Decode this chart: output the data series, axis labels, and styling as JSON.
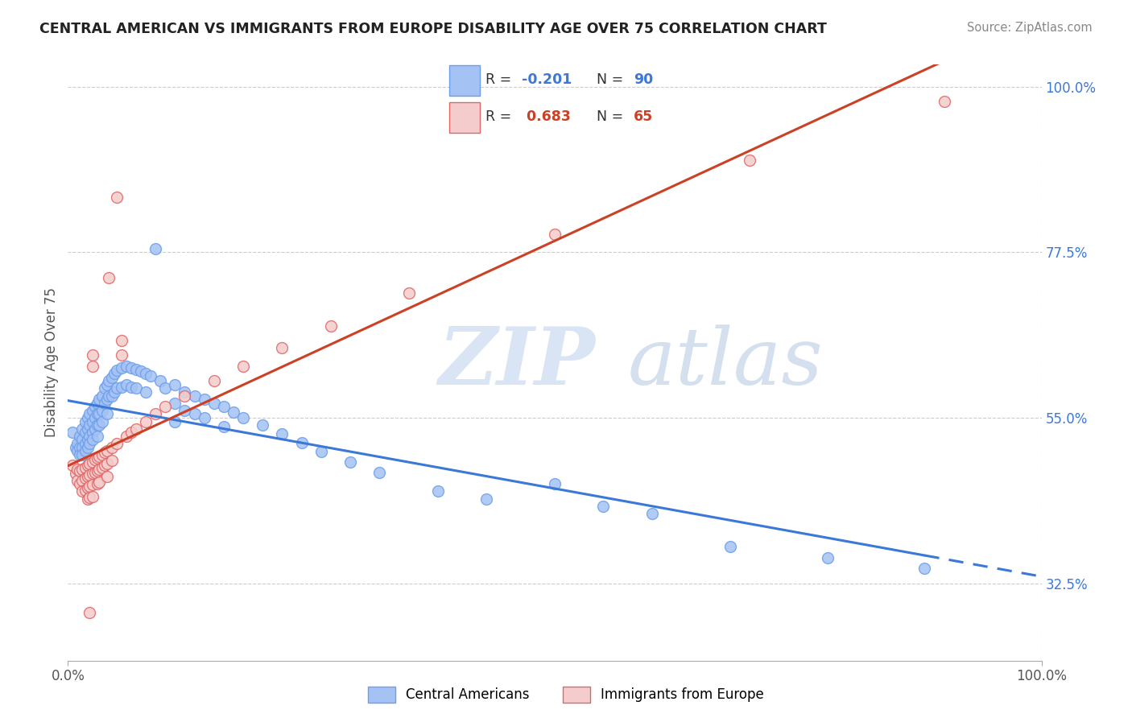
{
  "title": "CENTRAL AMERICAN VS IMMIGRANTS FROM EUROPE DISABILITY AGE OVER 75 CORRELATION CHART",
  "source": "Source: ZipAtlas.com",
  "ylabel": "Disability Age Over 75",
  "legend_labels": [
    "Central Americans",
    "Immigrants from Europe"
  ],
  "blue_color": "#a4c2f4",
  "pink_color": "#f4cccc",
  "blue_edge_color": "#6d9eeb",
  "pink_edge_color": "#e06666",
  "blue_line_color": "#3c78d8",
  "pink_line_color": "#cc4125",
  "watermark_zip": "ZIP",
  "watermark_atlas": "atlas",
  "xlim": [
    0.0,
    1.0
  ],
  "ylim": [
    0.22,
    1.03
  ],
  "ytick_vals": [
    0.325,
    0.55,
    0.775,
    1.0
  ],
  "ytick_labels": [
    "32.5%",
    "55.0%",
    "77.5%",
    "100.0%"
  ],
  "xtick_vals": [
    0.0,
    1.0
  ],
  "xtick_labels": [
    "0.0%",
    "100.0%"
  ],
  "blue_scatter": [
    [
      0.005,
      0.53
    ],
    [
      0.008,
      0.51
    ],
    [
      0.01,
      0.515
    ],
    [
      0.01,
      0.505
    ],
    [
      0.012,
      0.525
    ],
    [
      0.012,
      0.51
    ],
    [
      0.012,
      0.5
    ],
    [
      0.015,
      0.535
    ],
    [
      0.015,
      0.52
    ],
    [
      0.015,
      0.51
    ],
    [
      0.015,
      0.5
    ],
    [
      0.018,
      0.545
    ],
    [
      0.018,
      0.53
    ],
    [
      0.018,
      0.515
    ],
    [
      0.018,
      0.505
    ],
    [
      0.02,
      0.55
    ],
    [
      0.02,
      0.535
    ],
    [
      0.02,
      0.52
    ],
    [
      0.02,
      0.51
    ],
    [
      0.022,
      0.555
    ],
    [
      0.022,
      0.54
    ],
    [
      0.022,
      0.525
    ],
    [
      0.022,
      0.515
    ],
    [
      0.025,
      0.56
    ],
    [
      0.025,
      0.545
    ],
    [
      0.025,
      0.53
    ],
    [
      0.025,
      0.52
    ],
    [
      0.028,
      0.565
    ],
    [
      0.028,
      0.55
    ],
    [
      0.028,
      0.535
    ],
    [
      0.03,
      0.57
    ],
    [
      0.03,
      0.555
    ],
    [
      0.03,
      0.54
    ],
    [
      0.03,
      0.525
    ],
    [
      0.032,
      0.575
    ],
    [
      0.032,
      0.555
    ],
    [
      0.032,
      0.54
    ],
    [
      0.035,
      0.58
    ],
    [
      0.035,
      0.56
    ],
    [
      0.035,
      0.545
    ],
    [
      0.038,
      0.59
    ],
    [
      0.038,
      0.57
    ],
    [
      0.04,
      0.595
    ],
    [
      0.04,
      0.575
    ],
    [
      0.04,
      0.555
    ],
    [
      0.042,
      0.6
    ],
    [
      0.042,
      0.58
    ],
    [
      0.045,
      0.605
    ],
    [
      0.045,
      0.58
    ],
    [
      0.048,
      0.61
    ],
    [
      0.048,
      0.585
    ],
    [
      0.05,
      0.615
    ],
    [
      0.05,
      0.59
    ],
    [
      0.055,
      0.618
    ],
    [
      0.055,
      0.592
    ],
    [
      0.06,
      0.62
    ],
    [
      0.06,
      0.595
    ],
    [
      0.065,
      0.618
    ],
    [
      0.065,
      0.592
    ],
    [
      0.07,
      0.616
    ],
    [
      0.07,
      0.59
    ],
    [
      0.075,
      0.613
    ],
    [
      0.08,
      0.61
    ],
    [
      0.08,
      0.585
    ],
    [
      0.085,
      0.607
    ],
    [
      0.09,
      0.78
    ],
    [
      0.095,
      0.6
    ],
    [
      0.1,
      0.59
    ],
    [
      0.11,
      0.595
    ],
    [
      0.11,
      0.57
    ],
    [
      0.11,
      0.545
    ],
    [
      0.12,
      0.585
    ],
    [
      0.12,
      0.56
    ],
    [
      0.13,
      0.58
    ],
    [
      0.13,
      0.555
    ],
    [
      0.14,
      0.575
    ],
    [
      0.14,
      0.55
    ],
    [
      0.15,
      0.57
    ],
    [
      0.16,
      0.565
    ],
    [
      0.16,
      0.538
    ],
    [
      0.17,
      0.558
    ],
    [
      0.18,
      0.55
    ],
    [
      0.2,
      0.54
    ],
    [
      0.22,
      0.528
    ],
    [
      0.24,
      0.516
    ],
    [
      0.26,
      0.504
    ],
    [
      0.29,
      0.49
    ],
    [
      0.32,
      0.476
    ],
    [
      0.38,
      0.45
    ],
    [
      0.43,
      0.44
    ],
    [
      0.5,
      0.46
    ],
    [
      0.55,
      0.43
    ],
    [
      0.6,
      0.42
    ],
    [
      0.68,
      0.375
    ],
    [
      0.78,
      0.36
    ],
    [
      0.88,
      0.345
    ]
  ],
  "pink_scatter": [
    [
      0.005,
      0.485
    ],
    [
      0.008,
      0.475
    ],
    [
      0.01,
      0.48
    ],
    [
      0.01,
      0.465
    ],
    [
      0.012,
      0.478
    ],
    [
      0.012,
      0.46
    ],
    [
      0.015,
      0.48
    ],
    [
      0.015,
      0.465
    ],
    [
      0.015,
      0.45
    ],
    [
      0.018,
      0.482
    ],
    [
      0.018,
      0.468
    ],
    [
      0.018,
      0.452
    ],
    [
      0.02,
      0.485
    ],
    [
      0.02,
      0.47
    ],
    [
      0.02,
      0.455
    ],
    [
      0.02,
      0.44
    ],
    [
      0.022,
      0.488
    ],
    [
      0.022,
      0.472
    ],
    [
      0.022,
      0.457
    ],
    [
      0.022,
      0.442
    ],
    [
      0.022,
      0.285
    ],
    [
      0.025,
      0.635
    ],
    [
      0.025,
      0.62
    ],
    [
      0.025,
      0.49
    ],
    [
      0.025,
      0.474
    ],
    [
      0.025,
      0.459
    ],
    [
      0.025,
      0.443
    ],
    [
      0.028,
      0.493
    ],
    [
      0.028,
      0.476
    ],
    [
      0.03,
      0.495
    ],
    [
      0.03,
      0.478
    ],
    [
      0.03,
      0.46
    ],
    [
      0.032,
      0.497
    ],
    [
      0.032,
      0.48
    ],
    [
      0.032,
      0.462
    ],
    [
      0.035,
      0.5
    ],
    [
      0.035,
      0.482
    ],
    [
      0.038,
      0.503
    ],
    [
      0.038,
      0.485
    ],
    [
      0.04,
      0.505
    ],
    [
      0.04,
      0.488
    ],
    [
      0.04,
      0.47
    ],
    [
      0.042,
      0.74
    ],
    [
      0.045,
      0.51
    ],
    [
      0.045,
      0.492
    ],
    [
      0.05,
      0.515
    ],
    [
      0.05,
      0.85
    ],
    [
      0.055,
      0.655
    ],
    [
      0.055,
      0.635
    ],
    [
      0.06,
      0.525
    ],
    [
      0.065,
      0.53
    ],
    [
      0.07,
      0.535
    ],
    [
      0.08,
      0.545
    ],
    [
      0.09,
      0.555
    ],
    [
      0.1,
      0.565
    ],
    [
      0.12,
      0.58
    ],
    [
      0.15,
      0.6
    ],
    [
      0.18,
      0.62
    ],
    [
      0.22,
      0.645
    ],
    [
      0.27,
      0.675
    ],
    [
      0.35,
      0.72
    ],
    [
      0.5,
      0.8
    ],
    [
      0.7,
      0.9
    ],
    [
      0.9,
      0.98
    ]
  ]
}
